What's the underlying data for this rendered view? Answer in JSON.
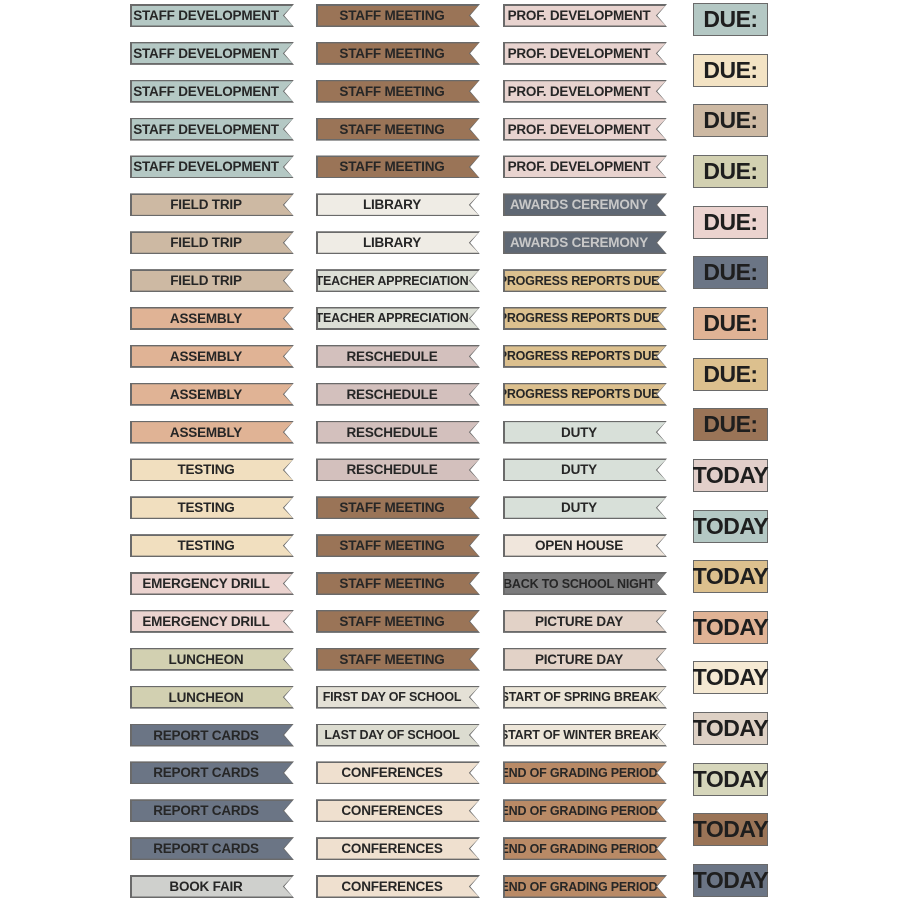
{
  "columns": [
    [
      {
        "label": "STAFF DEVELOPMENT",
        "color": "#b4c8c4"
      },
      {
        "label": "STAFF DEVELOPMENT",
        "color": "#b4c8c4"
      },
      {
        "label": "STAFF DEVELOPMENT",
        "color": "#b4c8c4"
      },
      {
        "label": "STAFF DEVELOPMENT",
        "color": "#b4c8c4"
      },
      {
        "label": "STAFF DEVELOPMENT",
        "color": "#b4c8c4"
      },
      {
        "label": "FIELD TRIP",
        "color": "#cdb9a3"
      },
      {
        "label": "FIELD TRIP",
        "color": "#cdb9a3"
      },
      {
        "label": "FIELD TRIP",
        "color": "#cdb9a3"
      },
      {
        "label": "ASSEMBLY",
        "color": "#e0b395"
      },
      {
        "label": "ASSEMBLY",
        "color": "#e0b395"
      },
      {
        "label": "ASSEMBLY",
        "color": "#e0b395"
      },
      {
        "label": "ASSEMBLY",
        "color": "#e0b395"
      },
      {
        "label": "TESTING",
        "color": "#f1dfbf"
      },
      {
        "label": "TESTING",
        "color": "#f1dfbf"
      },
      {
        "label": "TESTING",
        "color": "#f1dfbf"
      },
      {
        "label": "EMERGENCY DRILL",
        "color": "#ebd3cf"
      },
      {
        "label": "EMERGENCY DRILL",
        "color": "#ebd3cf"
      },
      {
        "label": "LUNCHEON",
        "color": "#d2d0b1"
      },
      {
        "label": "LUNCHEON",
        "color": "#d2d0b1"
      },
      {
        "label": "REPORT CARDS",
        "color": "#6b7585"
      },
      {
        "label": "REPORT CARDS",
        "color": "#6b7585"
      },
      {
        "label": "REPORT CARDS",
        "color": "#6b7585"
      },
      {
        "label": "REPORT CARDS",
        "color": "#6b7585"
      },
      {
        "label": "BOOK FAIR",
        "color": "#cfd0cd"
      }
    ],
    [
      {
        "label": "STAFF MEETING",
        "color": "#9a7457"
      },
      {
        "label": "STAFF MEETING",
        "color": "#9a7457"
      },
      {
        "label": "STAFF MEETING",
        "color": "#9a7457"
      },
      {
        "label": "STAFF MEETING",
        "color": "#9a7457"
      },
      {
        "label": "STAFF MEETING",
        "color": "#9a7457"
      },
      {
        "label": "LIBRARY",
        "color": "#efece5"
      },
      {
        "label": "LIBRARY",
        "color": "#efece5"
      },
      {
        "label": "TEACHER APPRECIATION",
        "color": "#dcdfd6"
      },
      {
        "label": "TEACHER APPRECIATION",
        "color": "#dcdfd6"
      },
      {
        "label": "RESCHEDULE",
        "color": "#d3c0bd"
      },
      {
        "label": "RESCHEDULE",
        "color": "#d3c0bd"
      },
      {
        "label": "RESCHEDULE",
        "color": "#d3c0bd"
      },
      {
        "label": "RESCHEDULE",
        "color": "#d3c0bd"
      },
      {
        "label": "STAFF MEETING",
        "color": "#9a7457"
      },
      {
        "label": "STAFF MEETING",
        "color": "#9a7457"
      },
      {
        "label": "STAFF MEETING",
        "color": "#9a7457"
      },
      {
        "label": "STAFF MEETING",
        "color": "#9a7457"
      },
      {
        "label": "STAFF MEETING",
        "color": "#9a7457"
      },
      {
        "label": "FIRST DAY OF SCHOOL",
        "color": "#e4e1d6"
      },
      {
        "label": "LAST DAY OF SCHOOL",
        "color": "#dcdcd0"
      },
      {
        "label": "CONFERENCES",
        "color": "#efe0cf"
      },
      {
        "label": "CONFERENCES",
        "color": "#efe0cf"
      },
      {
        "label": "CONFERENCES",
        "color": "#efe0cf"
      },
      {
        "label": "CONFERENCES",
        "color": "#efe0cf"
      }
    ],
    [
      {
        "label": "PROF. DEVELOPMENT",
        "color": "#e8d3cf"
      },
      {
        "label": "PROF. DEVELOPMENT",
        "color": "#e8d3cf"
      },
      {
        "label": "PROF. DEVELOPMENT",
        "color": "#e8d3cf"
      },
      {
        "label": "PROF. DEVELOPMENT",
        "color": "#e8d3cf"
      },
      {
        "label": "PROF. DEVELOPMENT",
        "color": "#e8d3cf"
      },
      {
        "label": "AWARDS CEREMONY",
        "color": "#5f6874",
        "text": "#c8c8c8"
      },
      {
        "label": "AWARDS CEREMONY",
        "color": "#5f6874",
        "text": "#c8c8c8"
      },
      {
        "label": "PROGRESS REPORTS DUE",
        "color": "#dcc08e"
      },
      {
        "label": "PROGRESS REPORTS DUE",
        "color": "#dcc08e"
      },
      {
        "label": "PROGRESS REPORTS DUE",
        "color": "#dcc08e"
      },
      {
        "label": "PROGRESS REPORTS DUE",
        "color": "#dcc08e"
      },
      {
        "label": "DUTY",
        "color": "#d8e0d9"
      },
      {
        "label": "DUTY",
        "color": "#d8e0d9"
      },
      {
        "label": "DUTY",
        "color": "#d8e0d9"
      },
      {
        "label": "OPEN HOUSE",
        "color": "#f0e6dc"
      },
      {
        "label": "BACK TO SCHOOL NIGHT",
        "color": "#7b7b7c"
      },
      {
        "label": "PICTURE DAY",
        "color": "#e2d2c7"
      },
      {
        "label": "PICTURE DAY",
        "color": "#e2d2c7"
      },
      {
        "label": "START OF SPRING BREAK",
        "color": "#ece6d8"
      },
      {
        "label": "START OF WINTER BREAK",
        "color": "#ede6d9"
      },
      {
        "label": "END OF GRADING PERIOD",
        "color": "#b98a66"
      },
      {
        "label": "END OF GRADING PERIOD",
        "color": "#b98a66"
      },
      {
        "label": "END OF GRADING PERIOD",
        "color": "#b98a66"
      },
      {
        "label": "END OF GRADING PERIOD",
        "color": "#b98a66"
      }
    ]
  ],
  "boxes": [
    {
      "label": "DUE:",
      "color": "#b4c8c4"
    },
    {
      "label": "DUE:",
      "color": "#f3e3c4"
    },
    {
      "label": "DUE:",
      "color": "#cdb9a3"
    },
    {
      "label": "DUE:",
      "color": "#d2d0b1"
    },
    {
      "label": "DUE:",
      "color": "#ebd3cf"
    },
    {
      "label": "DUE:",
      "color": "#6b7585"
    },
    {
      "label": "DUE:",
      "color": "#e0b395"
    },
    {
      "label": "DUE:",
      "color": "#dcc08e"
    },
    {
      "label": "DUE:",
      "color": "#9a7457"
    },
    {
      "label": "TODAY",
      "color": "#e2cfca"
    },
    {
      "label": "TODAY",
      "color": "#b4c8c4"
    },
    {
      "label": "TODAY",
      "color": "#dcc08e"
    },
    {
      "label": "TODAY",
      "color": "#e0b395"
    },
    {
      "label": "TODAY",
      "color": "#f5e9d3"
    },
    {
      "label": "TODAY",
      "color": "#ddd0c4"
    },
    {
      "label": "TODAY",
      "color": "#d6d6bb"
    },
    {
      "label": "TODAY",
      "color": "#9a7457"
    },
    {
      "label": "TODAY",
      "color": "#6b7585"
    }
  ]
}
